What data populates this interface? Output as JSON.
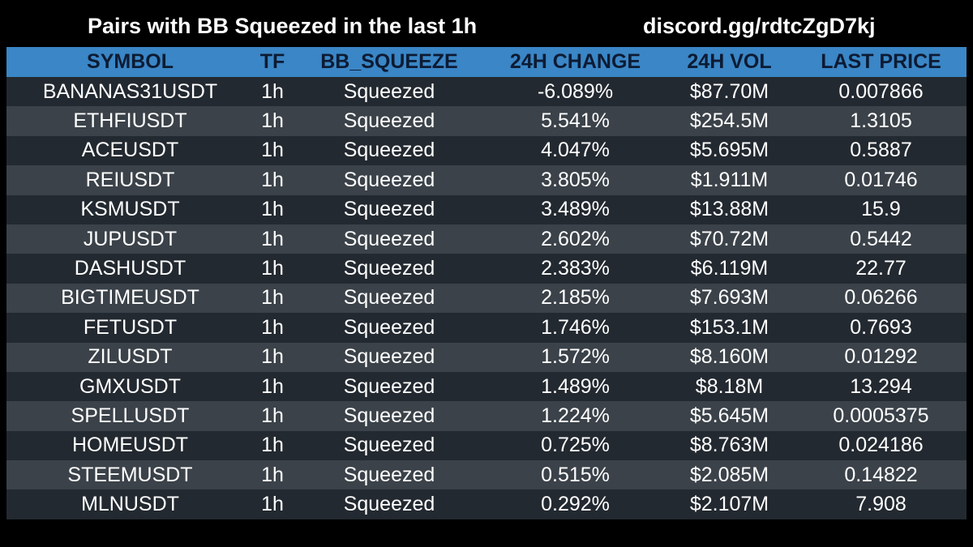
{
  "header": {
    "title": "Pairs with BB Squeezed in the last 1h",
    "link": "discord.gg/rdtcZgD7kj"
  },
  "colors": {
    "background": "#000000",
    "header_bg": "#3a86c6",
    "header_text": "#0d1b33",
    "row_dark": "#232930",
    "row_light": "#3b4249",
    "cell_text": "#ffffff"
  },
  "table": {
    "columns": [
      "SYMBOL",
      "TF",
      "BB_SQUEEZE",
      "24H CHANGE",
      "24H VOL",
      "LAST PRICE"
    ],
    "rows": [
      [
        "BANANAS31USDT",
        "1h",
        "Squeezed",
        "-6.089%",
        "$87.70M",
        "0.007866"
      ],
      [
        "ETHFIUSDT",
        "1h",
        "Squeezed",
        "5.541%",
        "$254.5M",
        "1.3105"
      ],
      [
        "ACEUSDT",
        "1h",
        "Squeezed",
        "4.047%",
        "$5.695M",
        "0.5887"
      ],
      [
        "REIUSDT",
        "1h",
        "Squeezed",
        "3.805%",
        "$1.911M",
        "0.01746"
      ],
      [
        "KSMUSDT",
        "1h",
        "Squeezed",
        "3.489%",
        "$13.88M",
        "15.9"
      ],
      [
        "JUPUSDT",
        "1h",
        "Squeezed",
        "2.602%",
        "$70.72M",
        "0.5442"
      ],
      [
        "DASHUSDT",
        "1h",
        "Squeezed",
        "2.383%",
        "$6.119M",
        "22.77"
      ],
      [
        "BIGTIMEUSDT",
        "1h",
        "Squeezed",
        "2.185%",
        "$7.693M",
        "0.06266"
      ],
      [
        "FETUSDT",
        "1h",
        "Squeezed",
        "1.746%",
        "$153.1M",
        "0.7693"
      ],
      [
        "ZILUSDT",
        "1h",
        "Squeezed",
        "1.572%",
        "$8.160M",
        "0.01292"
      ],
      [
        "GMXUSDT",
        "1h",
        "Squeezed",
        "1.489%",
        "$8.18M",
        "13.294"
      ],
      [
        "SPELLUSDT",
        "1h",
        "Squeezed",
        "1.224%",
        "$5.645M",
        "0.0005375"
      ],
      [
        "HOMEUSDT",
        "1h",
        "Squeezed",
        "0.725%",
        "$8.763M",
        "0.024186"
      ],
      [
        "STEEMUSDT",
        "1h",
        "Squeezed",
        "0.515%",
        "$2.085M",
        "0.14822"
      ],
      [
        "MLNUSDT",
        "1h",
        "Squeezed",
        "0.292%",
        "$2.107M",
        "7.908"
      ]
    ]
  }
}
